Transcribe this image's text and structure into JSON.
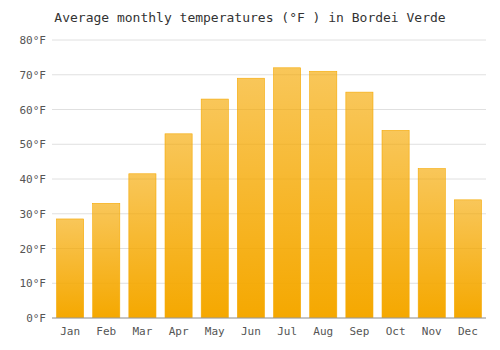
{
  "chart_data": {
    "type": "bar",
    "title": "Average monthly temperatures (°F ) in Bordei Verde",
    "categories": [
      "Jan",
      "Feb",
      "Mar",
      "Apr",
      "May",
      "Jun",
      "Jul",
      "Aug",
      "Sep",
      "Oct",
      "Nov",
      "Dec"
    ],
    "values": [
      28.5,
      33.0,
      41.5,
      53.0,
      63.0,
      69.0,
      72.0,
      71.0,
      65.0,
      54.0,
      43.0,
      34.0
    ],
    "color": "#F5A800",
    "ylim": [
      0,
      80
    ],
    "yticks": [
      {
        "value": 0,
        "label": "0°F"
      },
      {
        "value": 10,
        "label": "10°F"
      },
      {
        "value": 20,
        "label": "20°F"
      },
      {
        "value": 30,
        "label": "30°F"
      },
      {
        "value": 40,
        "label": "40°F"
      },
      {
        "value": 50,
        "label": "50°F"
      },
      {
        "value": 60,
        "label": "60°F"
      },
      {
        "value": 70,
        "label": "70°F"
      },
      {
        "value": 80,
        "label": "80°F"
      }
    ],
    "grid": true
  }
}
